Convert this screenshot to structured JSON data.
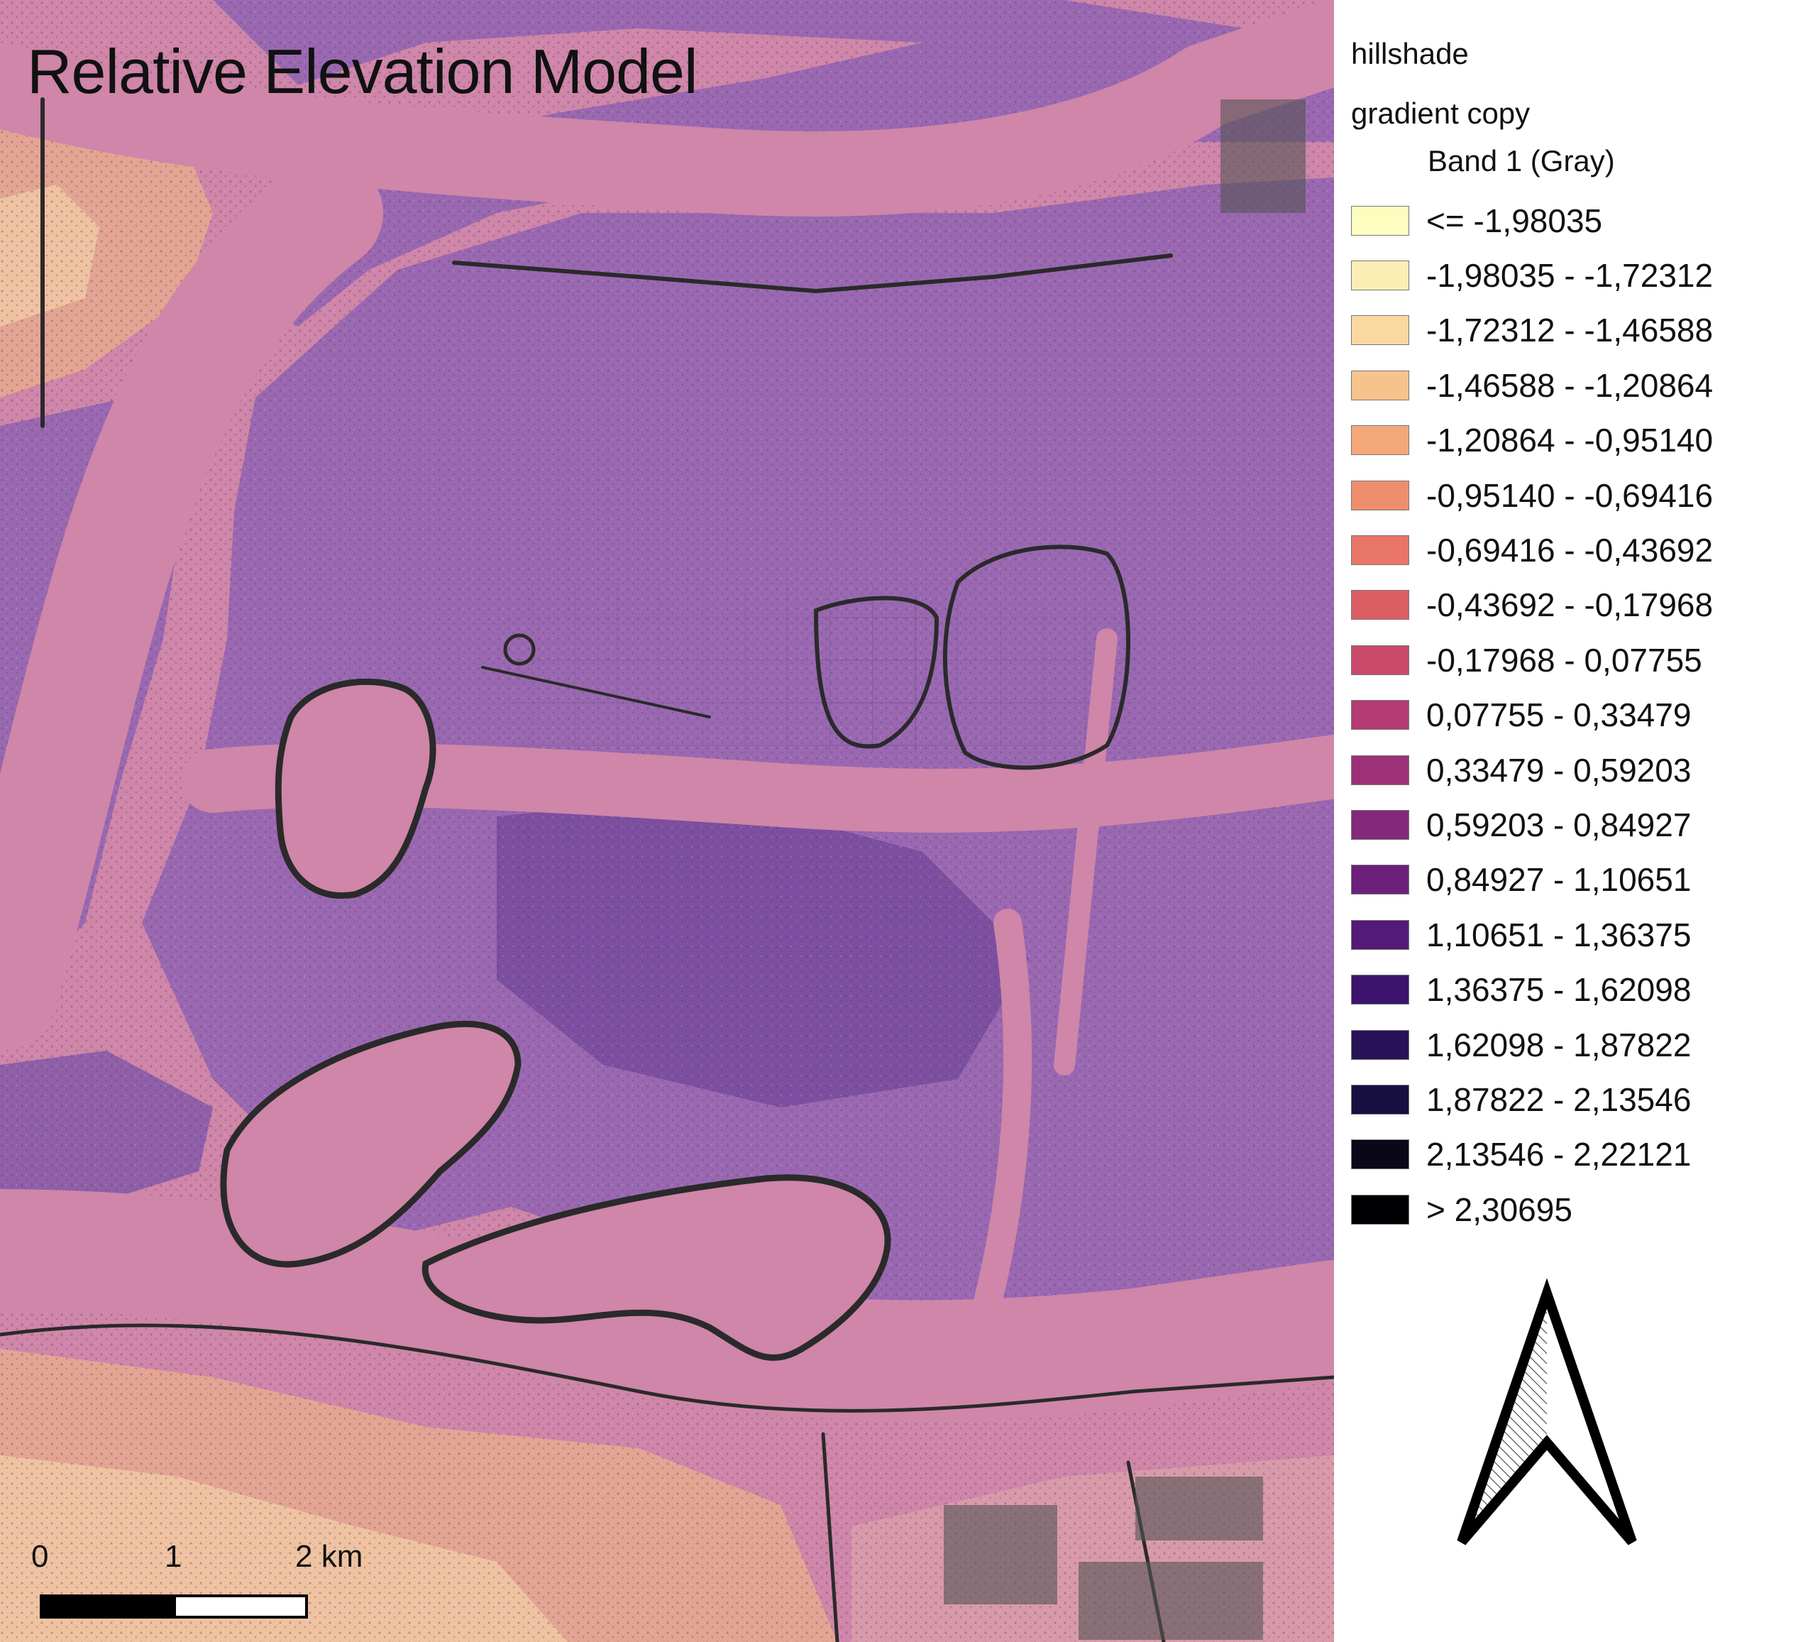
{
  "map": {
    "title": "Relative Elevation Model",
    "colors": {
      "river": "#cf86a8",
      "floodplain": "#9a68b0",
      "floodplain_dark": "#7d4fa0",
      "uplands": "#e3a592",
      "uplands_light": "#efc3a0",
      "dike": "#2a2a2a",
      "shadow": "#555555"
    }
  },
  "scale_bar": {
    "labels": [
      "0",
      "1",
      "2 km"
    ]
  },
  "legend": {
    "group_title": "hillshade",
    "layer_title": "gradient copy",
    "band_title": "Band 1 (Gray)",
    "items": [
      {
        "label": "<= -1,98035",
        "color": "#fcfdbf"
      },
      {
        "label": "-1,98035 - -1,72312",
        "color": "#fbeeb5"
      },
      {
        "label": "-1,72312 - -1,46588",
        "color": "#f9d9a0"
      },
      {
        "label": "-1,46588 - -1,20864",
        "color": "#f6c38d"
      },
      {
        "label": "-1,20864 - -0,95140",
        "color": "#f4a87a"
      },
      {
        "label": "-0,95140 - -0,69416",
        "color": "#ef8e6c"
      },
      {
        "label": "-0,69416 - -0,43692",
        "color": "#e87565"
      },
      {
        "label": "-0,43692 - -0,17968",
        "color": "#db5e65"
      },
      {
        "label": "-0,17968 - 0,07755",
        "color": "#c94a6b"
      },
      {
        "label": "0,07755 - 0,33479",
        "color": "#b43c72"
      },
      {
        "label": "0,33479 - 0,59203",
        "color": "#9c3178"
      },
      {
        "label": "0,59203 - 0,84927",
        "color": "#84287b"
      },
      {
        "label": "0,84927 - 1,10651",
        "color": "#6c207c"
      },
      {
        "label": "1,10651 - 1,36375",
        "color": "#541a78"
      },
      {
        "label": "1,36375 - 1,62098",
        "color": "#3d136c"
      },
      {
        "label": "1,62098 - 1,87822",
        "color": "#281257"
      },
      {
        "label": "1,87822 - 2,13546",
        "color": "#171040"
      },
      {
        "label": "2,13546 - 2,22121",
        "color": "#0a0719"
      },
      {
        "label": "> 2,30695",
        "color": "#000004"
      }
    ]
  },
  "north_arrow": {
    "icon": "north-arrow-icon"
  }
}
